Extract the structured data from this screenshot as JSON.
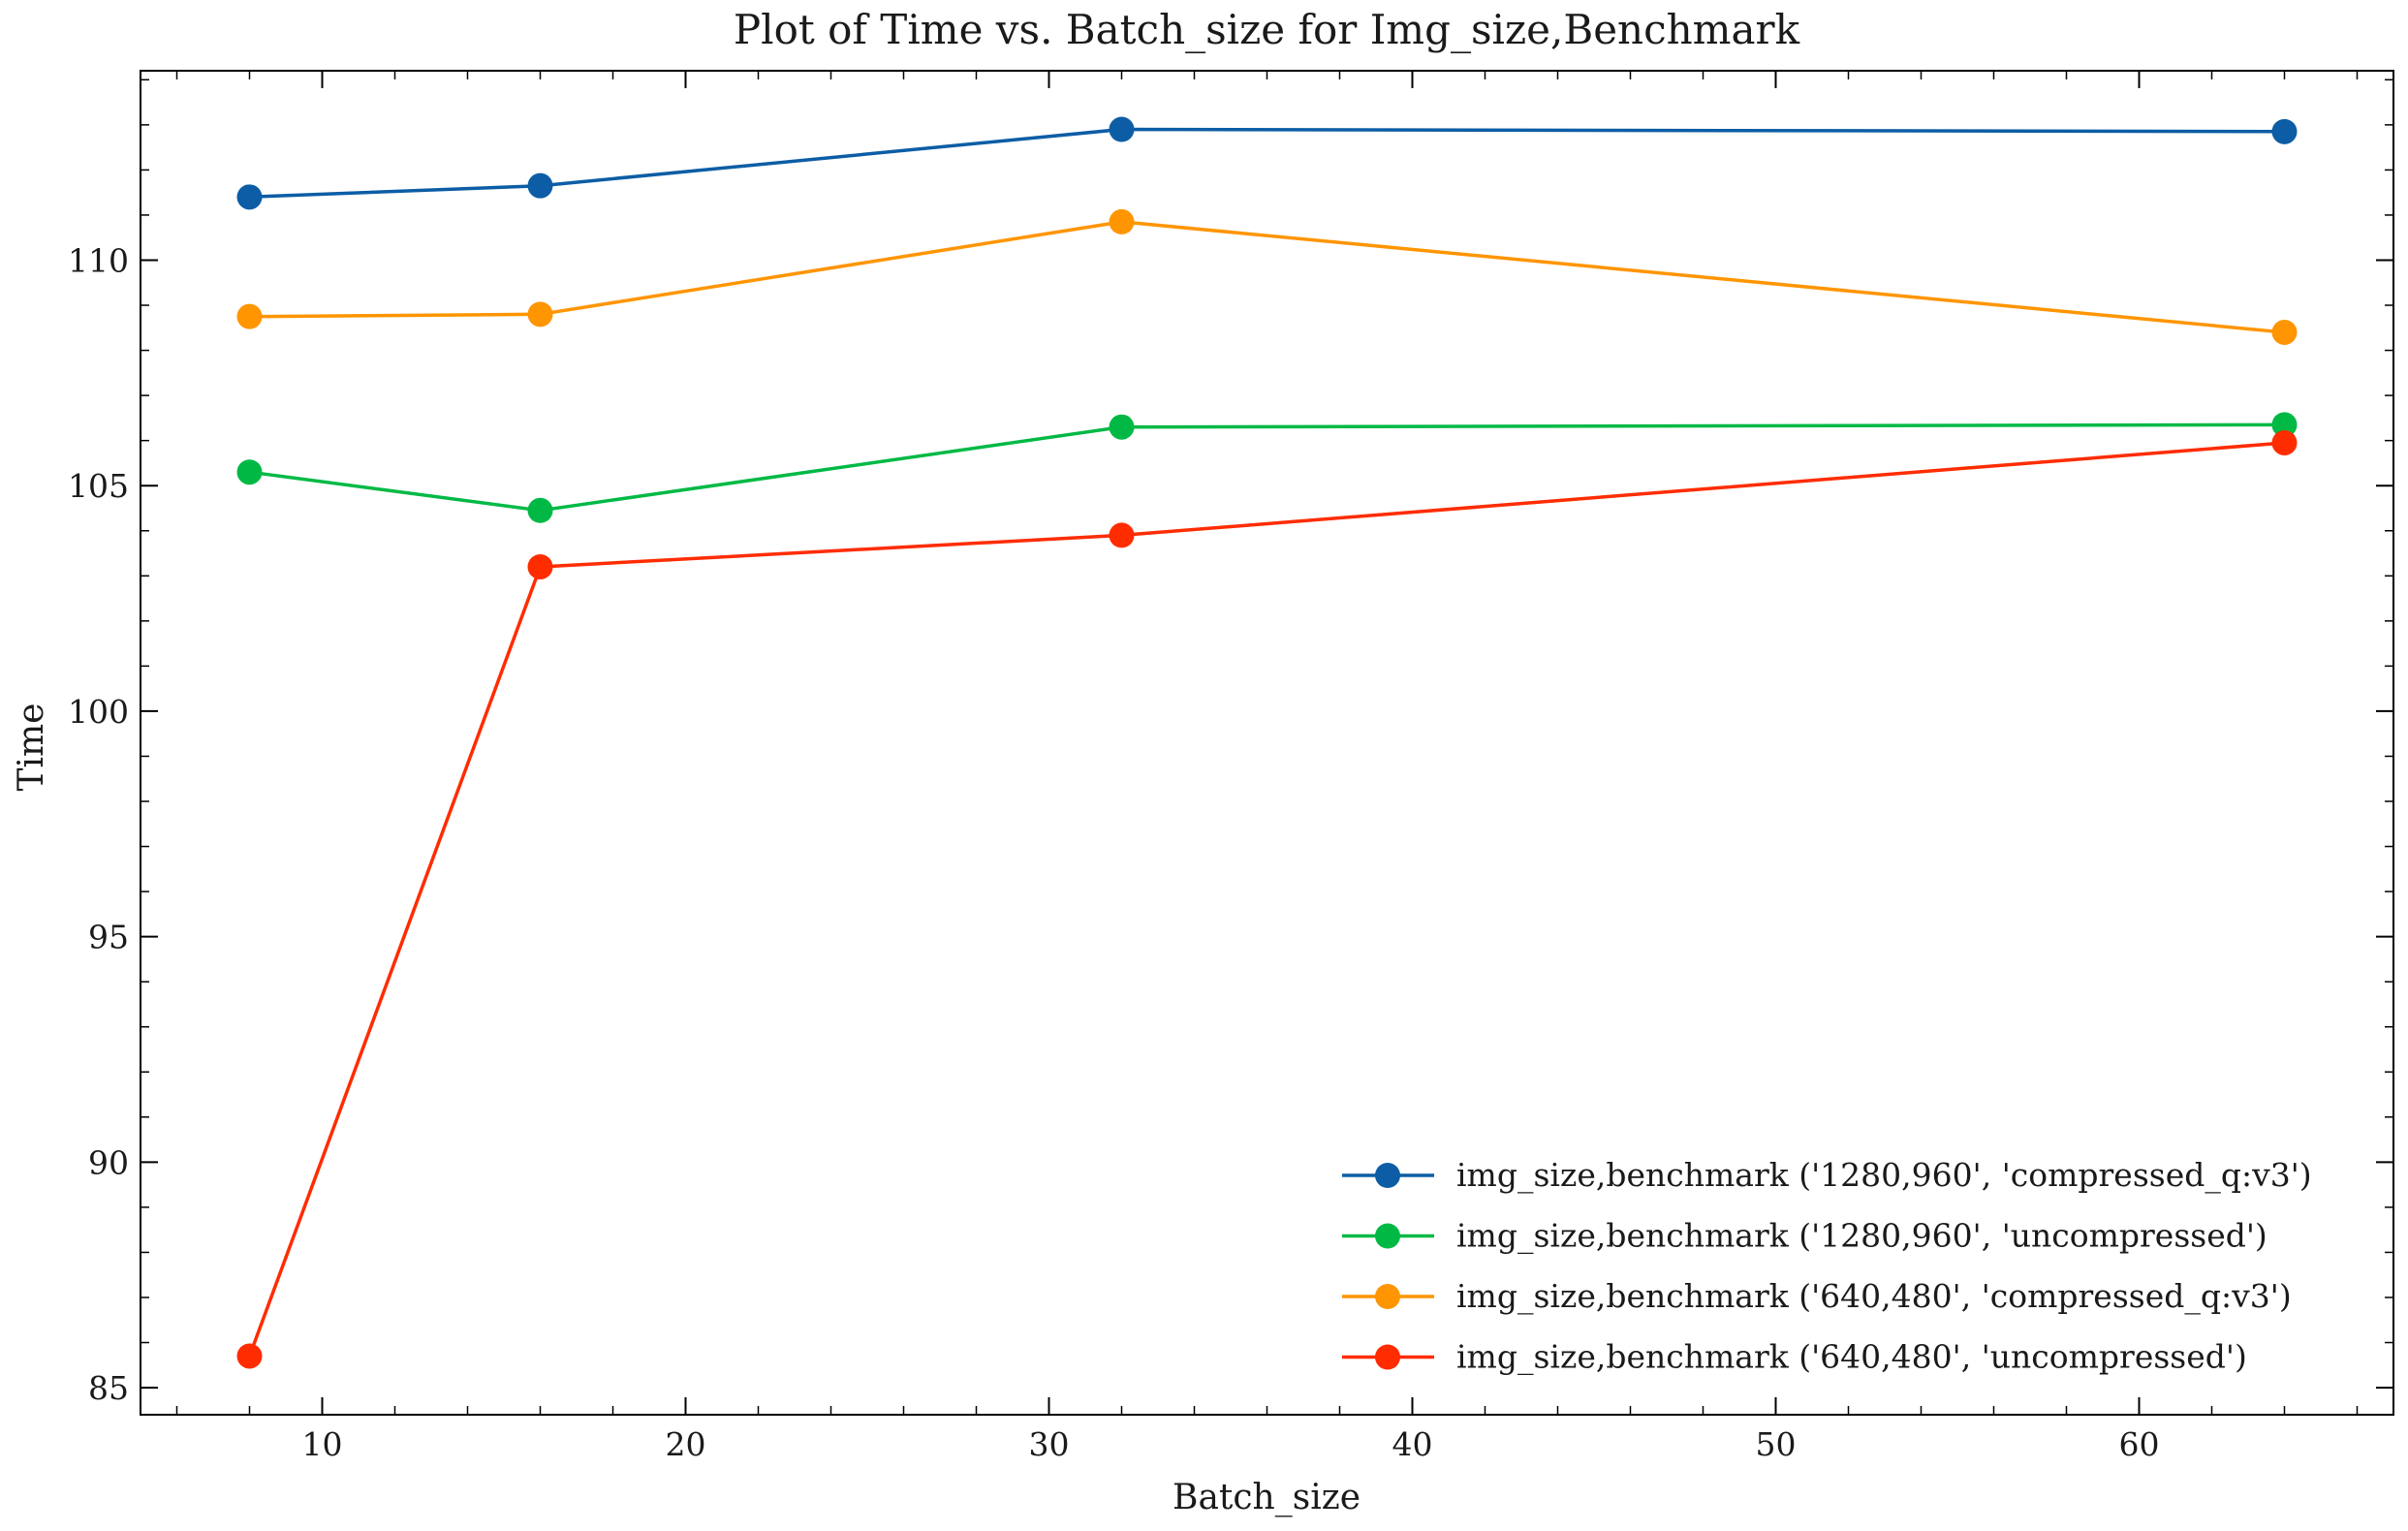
{
  "chart_data": {
    "type": "line",
    "title": "Plot of Time vs. Batch_size for Img_size,Benchmark",
    "xlabel": "Batch_size",
    "ylabel": "Time",
    "xlim": [
      5,
      67
    ],
    "ylim": [
      84.4,
      114.2
    ],
    "x_ticks": [
      10,
      20,
      30,
      40,
      50,
      60
    ],
    "y_ticks": [
      85,
      90,
      95,
      100,
      105,
      110
    ],
    "grid": false,
    "legend_position": "lower-right",
    "x": [
      8,
      16,
      32,
      64
    ],
    "series": [
      {
        "name": "img_size,benchmark ('1280,960', 'compressed_q:v3')",
        "color": "#0C5DA5",
        "values": [
          111.4,
          111.65,
          112.9,
          112.85
        ]
      },
      {
        "name": "img_size,benchmark ('1280,960', 'uncompressed')",
        "color": "#00B945",
        "values": [
          105.3,
          104.45,
          106.3,
          106.35
        ]
      },
      {
        "name": "img_size,benchmark ('640,480', 'compressed_q:v3')",
        "color": "#FF9500",
        "values": [
          108.75,
          108.8,
          110.85,
          108.4
        ]
      },
      {
        "name": "img_size,benchmark ('640,480', 'uncompressed')",
        "color": "#FF2C00",
        "values": [
          85.7,
          103.2,
          103.9,
          105.95
        ]
      }
    ]
  }
}
